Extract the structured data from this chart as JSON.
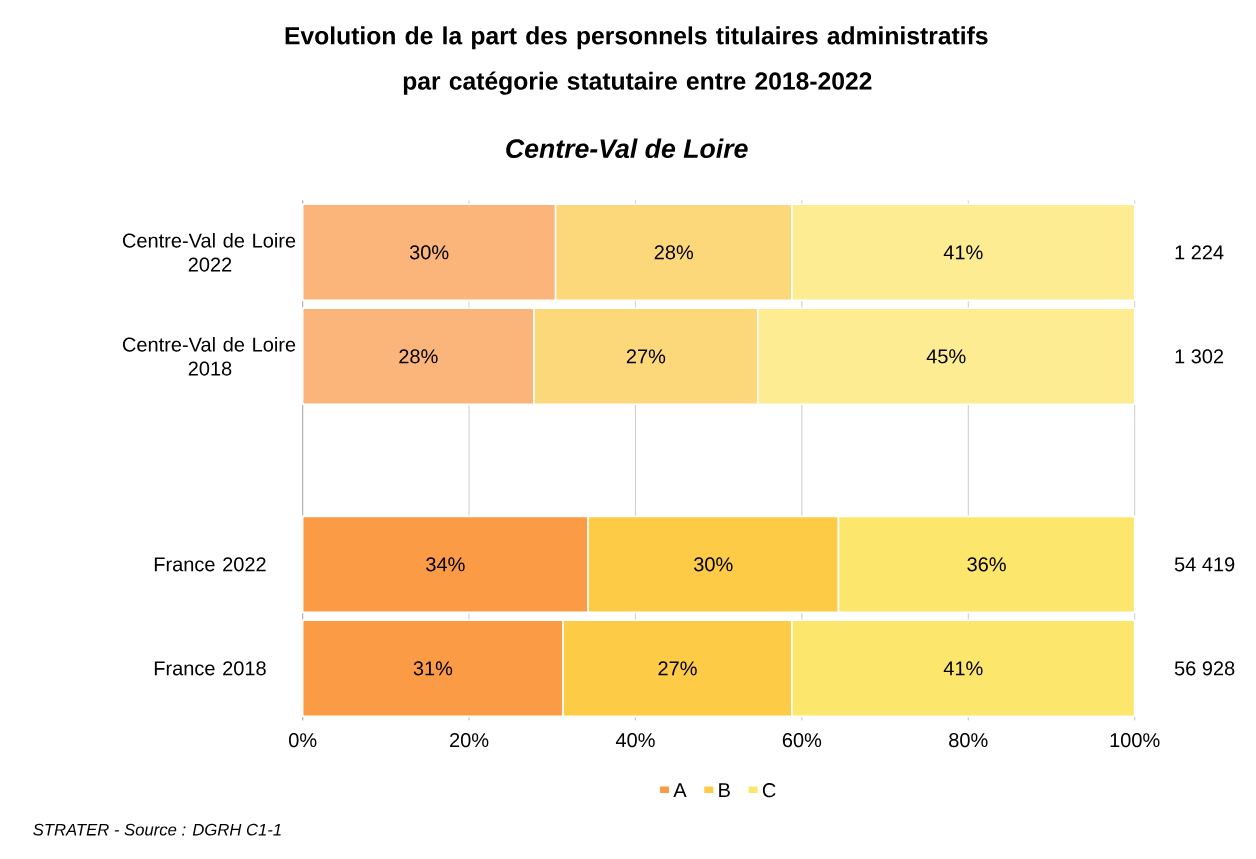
{
  "chart_data": {
    "type": "bar",
    "orientation": "horizontal",
    "stacked": true,
    "title": "Evolution de la part des personnels titulaires administratifs par catégorie statutaire entre 2018-2022",
    "subtitle": "Centre-Val de Loire",
    "categories": [
      "Centre-Val de Loire 2022",
      "Centre-Val de Loire 2018",
      null,
      "France 2022",
      "France 2018"
    ],
    "series": [
      {
        "name": "A",
        "colors": [
          "#fbb57a",
          "#fbb57a",
          null,
          "#fb9b45",
          "#fb9b45"
        ],
        "values": [
          30.4,
          27.8,
          null,
          34.3,
          31.3
        ],
        "value_labels": [
          "30%",
          "28%",
          null,
          "34%",
          "31%"
        ]
      },
      {
        "name": "B",
        "colors": [
          "#fcd87a",
          "#fcd87a",
          null,
          "#fdcb45",
          "#fdcb45"
        ],
        "values": [
          28.4,
          26.9,
          null,
          30.1,
          27.5
        ],
        "value_labels": [
          "28%",
          "27%",
          null,
          "30%",
          "27%"
        ]
      },
      {
        "name": "C",
        "colors": [
          "#fdec92",
          "#fdec92",
          null,
          "#fde66c",
          "#fde66c"
        ],
        "values": [
          41.2,
          45.3,
          null,
          35.6,
          41.2
        ],
        "value_labels": [
          "41%",
          "45%",
          null,
          "36%",
          "41%"
        ]
      }
    ],
    "xlim": [
      0,
      100
    ],
    "xticks": [
      {
        "value": 0,
        "label": "0%"
      },
      {
        "value": 20,
        "label": "20%"
      },
      {
        "value": 40,
        "label": "40%"
      },
      {
        "value": 60,
        "label": "60%"
      },
      {
        "value": 80,
        "label": "80%"
      },
      {
        "value": 100,
        "label": "100%"
      }
    ],
    "grid": "x",
    "legend": "bottom",
    "annotations": [
      "STRATER - Source : DGRH C1-1",
      "1 224",
      "1 302",
      "54 419",
      "56 928"
    ]
  }
}
